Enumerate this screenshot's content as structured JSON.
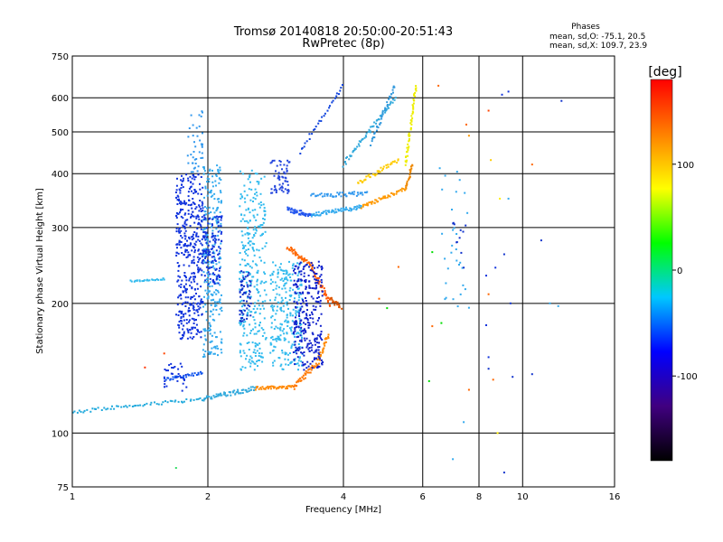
{
  "chart_data": {
    "type": "scatter",
    "title": "Tromsø 20140818 20:50:00-20:51:43",
    "subtitle": "RwPretec (8p)",
    "xlabel": "Frequency [MHz]",
    "ylabel": "Stationary phase Virtual Height [km]",
    "x_scale": "log",
    "y_scale": "log",
    "xlim": [
      1,
      16
    ],
    "ylim": [
      75,
      750
    ],
    "x_ticks": [
      1,
      2,
      4,
      6,
      8,
      10,
      16
    ],
    "y_ticks": [
      75,
      100,
      200,
      300,
      400,
      500,
      600,
      750
    ],
    "grid": true,
    "annotation": {
      "title": "Phases",
      "line1": "mean, sd,O: -75.1, 20.5",
      "line2": "mean, sd,X: 109.7, 23.9"
    },
    "colorbar": {
      "label": "[deg]",
      "ticks": [
        100,
        0,
        -100
      ],
      "range": [
        -180,
        180
      ],
      "colormap": [
        "#000000",
        "#400080",
        "#0000ff",
        "#00c8ff",
        "#00ff00",
        "#ffff00",
        "#ff8000",
        "#ff0000"
      ]
    },
    "traces": [
      {
        "kind": "trace",
        "f0": 1.0,
        "f1": 1.95,
        "h0": 112,
        "h1": 120,
        "width": 2,
        "n": 60,
        "color": "#22aadd"
      },
      {
        "kind": "trace",
        "f0": 1.95,
        "f1": 2.55,
        "h0": 120,
        "h1": 127,
        "width": 3,
        "n": 60,
        "color": "#33aadd"
      },
      {
        "kind": "trace",
        "f0": 2.55,
        "f1": 3.1,
        "h0": 127,
        "h1": 128,
        "width": 2,
        "n": 40,
        "color": "#ff8800"
      },
      {
        "kind": "trace",
        "f0": 3.1,
        "f1": 3.5,
        "h0": 128,
        "h1": 145,
        "width": 4,
        "n": 40,
        "color": "#ff7700"
      },
      {
        "kind": "trace",
        "f0": 3.5,
        "f1": 3.7,
        "h0": 145,
        "h1": 170,
        "width": 6,
        "n": 30,
        "color": "#ff8800"
      },
      {
        "kind": "trace",
        "f0": 1.6,
        "f1": 1.95,
        "h0": 133,
        "h1": 138,
        "width": 2,
        "n": 30,
        "color": "#1155ee"
      },
      {
        "kind": "trace",
        "f0": 1.35,
        "f1": 1.6,
        "h0": 225,
        "h1": 228,
        "width": 2,
        "n": 25,
        "color": "#33bbee"
      },
      {
        "kind": "trace",
        "f0": 3.0,
        "f1": 3.4,
        "h0": 270,
        "h1": 245,
        "width": 6,
        "n": 40,
        "color": "#ff6600"
      },
      {
        "kind": "trace",
        "f0": 3.4,
        "f1": 3.75,
        "h0": 240,
        "h1": 200,
        "width": 6,
        "n": 40,
        "color": "#ff5500"
      },
      {
        "kind": "trace",
        "f0": 3.75,
        "f1": 3.95,
        "h0": 205,
        "h1": 195,
        "width": 4,
        "n": 20,
        "color": "#dd5500"
      },
      {
        "kind": "trace",
        "f0": 3.0,
        "f1": 3.4,
        "h0": 330,
        "h1": 320,
        "width": 8,
        "n": 40,
        "color": "#2255ee"
      },
      {
        "kind": "trace",
        "f0": 3.4,
        "f1": 4.4,
        "h0": 320,
        "h1": 335,
        "width": 8,
        "n": 60,
        "color": "#33aaee"
      },
      {
        "kind": "trace",
        "f0": 3.4,
        "f1": 4.5,
        "h0": 355,
        "h1": 360,
        "width": 8,
        "n": 50,
        "color": "#3399ee"
      },
      {
        "kind": "trace",
        "f0": 4.4,
        "f1": 5.5,
        "h0": 335,
        "h1": 370,
        "width": 6,
        "n": 50,
        "color": "#ff9900"
      },
      {
        "kind": "trace",
        "f0": 5.5,
        "f1": 5.7,
        "h0": 370,
        "h1": 420,
        "width": 6,
        "n": 20,
        "color": "#ee8800"
      },
      {
        "kind": "trace",
        "f0": 4.3,
        "f1": 5.3,
        "h0": 380,
        "h1": 430,
        "width": 8,
        "n": 40,
        "color": "#ffcc00"
      },
      {
        "kind": "trace",
        "f0": 5.5,
        "f1": 5.8,
        "h0": 420,
        "h1": 640,
        "width": 8,
        "n": 50,
        "color": "#eeee00"
      },
      {
        "kind": "trace",
        "f0": 4.0,
        "f1": 5.2,
        "h0": 420,
        "h1": 600,
        "width": 10,
        "n": 60,
        "color": "#33aadd"
      },
      {
        "kind": "trace",
        "f0": 4.6,
        "f1": 5.2,
        "h0": 470,
        "h1": 640,
        "width": 10,
        "n": 40,
        "color": "#3399dd"
      },
      {
        "kind": "trace",
        "f0": 3.2,
        "f1": 4.0,
        "h0": 450,
        "h1": 640,
        "width": 10,
        "n": 30,
        "color": "#1144dd"
      },
      {
        "kind": "cloud",
        "f0": 1.7,
        "f1": 1.95,
        "h0": 165,
        "h1": 400,
        "n": 420,
        "color": "#1133dd"
      },
      {
        "kind": "cloud",
        "f0": 1.8,
        "f1": 1.95,
        "h0": 400,
        "h1": 560,
        "n": 40,
        "color": "#3399ee"
      },
      {
        "kind": "cloud",
        "f0": 1.95,
        "f1": 2.15,
        "h0": 150,
        "h1": 420,
        "n": 260,
        "color": "#33aaee"
      },
      {
        "kind": "cloud",
        "f0": 1.95,
        "f1": 2.15,
        "h0": 220,
        "h1": 320,
        "n": 120,
        "color": "#1133dd"
      },
      {
        "kind": "cloud",
        "f0": 2.35,
        "f1": 2.7,
        "h0": 140,
        "h1": 410,
        "n": 300,
        "color": "#33bbee"
      },
      {
        "kind": "cloud",
        "f0": 2.35,
        "f1": 2.5,
        "h0": 180,
        "h1": 240,
        "n": 60,
        "color": "#1133cc"
      },
      {
        "kind": "cloud",
        "f0": 2.75,
        "f1": 3.25,
        "h0": 140,
        "h1": 250,
        "n": 260,
        "color": "#33bbee"
      },
      {
        "kind": "cloud",
        "f0": 2.75,
        "f1": 3.05,
        "h0": 360,
        "h1": 430,
        "n": 60,
        "color": "#2244dd"
      },
      {
        "kind": "cloud",
        "f0": 3.1,
        "f1": 3.6,
        "h0": 140,
        "h1": 250,
        "n": 280,
        "color": "#1122cc"
      },
      {
        "kind": "cloud",
        "f0": 1.6,
        "f1": 1.8,
        "h0": 125,
        "h1": 145,
        "n": 30,
        "color": "#1133dd"
      },
      {
        "kind": "cloud",
        "f0": 6.5,
        "f1": 7.6,
        "h0": 190,
        "h1": 420,
        "n": 30,
        "color": "#33aaee"
      },
      {
        "kind": "cloud",
        "f0": 7.0,
        "f1": 7.6,
        "h0": 260,
        "h1": 310,
        "n": 10,
        "color": "#1133cc"
      }
    ],
    "scatter_points": [
      [
        6.5,
        640,
        "#ff6600"
      ],
      [
        7.5,
        520,
        "#ff6600"
      ],
      [
        7.6,
        490,
        "#ff9900"
      ],
      [
        8.4,
        560,
        "#ff4400"
      ],
      [
        8.5,
        430,
        "#ffcc00"
      ],
      [
        9.0,
        610,
        "#1133dd"
      ],
      [
        9.3,
        620,
        "#1133dd"
      ],
      [
        8.9,
        350,
        "#ffee00"
      ],
      [
        9.3,
        350,
        "#33aaee"
      ],
      [
        10.5,
        420,
        "#ff6600"
      ],
      [
        11.0,
        280,
        "#1133cc"
      ],
      [
        12.2,
        590,
        "#1133cc"
      ],
      [
        11.5,
        200,
        "#33aaee"
      ],
      [
        12.0,
        197,
        "#33aaee"
      ],
      [
        9.1,
        260,
        "#1133cc"
      ],
      [
        8.4,
        210,
        "#ff6600"
      ],
      [
        8.7,
        242,
        "#1133dd"
      ],
      [
        8.3,
        232,
        "#1133dd"
      ],
      [
        8.3,
        178,
        "#1133dd"
      ],
      [
        8.4,
        150,
        "#1133dd"
      ],
      [
        8.4,
        141,
        "#1133cc"
      ],
      [
        8.6,
        133,
        "#ff6600"
      ],
      [
        9.4,
        200,
        "#1133cc"
      ],
      [
        9.5,
        135,
        "#1133cc"
      ],
      [
        10.5,
        137,
        "#1133cc"
      ],
      [
        8.8,
        100,
        "#ffee00"
      ],
      [
        9.1,
        81,
        "#1133cc"
      ],
      [
        7.0,
        87,
        "#33aaee"
      ],
      [
        7.4,
        106,
        "#33aaee"
      ],
      [
        7.6,
        126,
        "#ff6600"
      ],
      [
        6.2,
        132,
        "#00dd00"
      ],
      [
        6.3,
        177,
        "#ff6600"
      ],
      [
        6.6,
        180,
        "#00dd00"
      ],
      [
        6.3,
        263,
        "#00dd00"
      ],
      [
        5.3,
        243,
        "#ff6600"
      ],
      [
        5.0,
        195,
        "#00dd00"
      ],
      [
        4.8,
        205,
        "#ff6600"
      ],
      [
        7.0,
        296,
        "#33aaee"
      ],
      [
        7.4,
        242,
        "#1133cc"
      ],
      [
        1.7,
        83,
        "#33dd66"
      ],
      [
        1.6,
        153,
        "#ff4400"
      ],
      [
        1.45,
        142,
        "#ff3300"
      ]
    ]
  }
}
